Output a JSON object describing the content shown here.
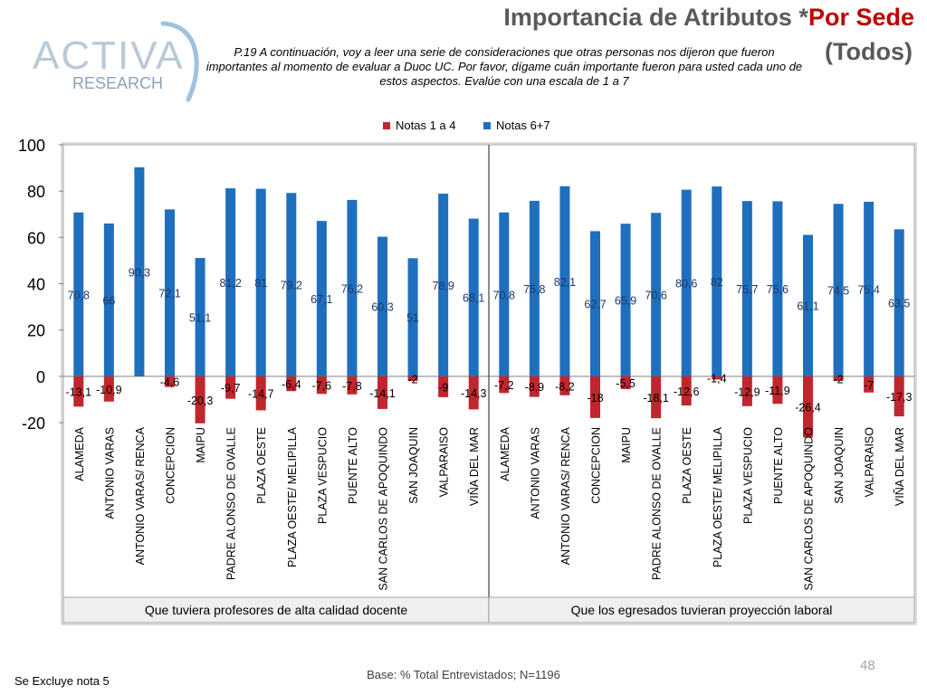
{
  "header": {
    "title_main": "Importancia de Atributos *",
    "title_accent": "Por Sede",
    "title_line2": "(Todos)",
    "question": "P.19 A continuación, voy a leer una serie de consideraciones que otras personas nos dijeron que fueron importantes al momento de evaluar a Duoc UC. Por favor, dígame cuán importante fueron para usted cada uno de estos aspectos. Evalúe con una escala de 1 a 7"
  },
  "logo": {
    "text_main": "ACTIVA",
    "text_sub": "RESEARCH"
  },
  "footer": {
    "base": "Base: % Total Entrevistados; N=1196",
    "note": "Se Excluye nota 5",
    "page": "48"
  },
  "colors": {
    "neg": "#c0262d",
    "pos": "#1f6fbf",
    "title_accent": "#c00000",
    "gray": "#595959"
  },
  "chart_data": {
    "type": "bar",
    "ylim": [
      -20,
      100
    ],
    "yticks": [
      -20,
      0,
      20,
      40,
      60,
      80,
      100
    ],
    "legend": [
      "Notas 1 a 4",
      "Notas 6+7"
    ],
    "legend_position": "top",
    "groups": [
      {
        "label": "Que tuviera profesores de alta calidad docente",
        "categories": [
          "ALAMEDA",
          "ANTONIO VARAS",
          "ANTONIO VARAS/ RENCA",
          "CONCEPCION",
          "MAIPU",
          "PADRE ALONSO DE OVALLE",
          "PLAZA OESTE",
          "PLAZA OESTE/ MELIPILLA",
          "PLAZA VESPUCIO",
          "PUENTE ALTO",
          "SAN CARLOS DE APOQUINDO",
          "SAN JOAQUIN",
          "VALPARAISO",
          "VIÑA DEL MAR"
        ],
        "pos": [
          70.8,
          66,
          90.3,
          72.1,
          51.1,
          81.2,
          81,
          79.2,
          67.1,
          76.2,
          60.3,
          51,
          78.9,
          68.1
        ],
        "pos_labels": [
          "70,8",
          "66",
          "90,3",
          "72,1",
          "51,1",
          "81,2",
          "81",
          "79,2",
          "67,1",
          "76,2",
          "60,3",
          "51",
          "78,9",
          "68,1"
        ],
        "neg": [
          -13.1,
          -10.9,
          null,
          -4.6,
          -20.3,
          -9.7,
          -14.7,
          -6.4,
          -7.6,
          -7.8,
          -14.1,
          -2,
          -9,
          -14.3
        ],
        "neg_labels": [
          "-13,1",
          "-10,9",
          "",
          "-4,6",
          "-20,3",
          "-9,7",
          "-14,7",
          "-6,4",
          "-7,6",
          "-7,8",
          "-14,1",
          "-2",
          "-9",
          "-14,3"
        ]
      },
      {
        "label": "Que los egresados tuvieran proyección laboral",
        "categories": [
          "ALAMEDA",
          "ANTONIO VARAS",
          "ANTONIO VARAS/ RENCA",
          "CONCEPCION",
          "MAIPU",
          "PADRE ALONSO DE OVALLE",
          "PLAZA OESTE",
          "PLAZA OESTE/ MELIPILLA",
          "PLAZA VESPUCIO",
          "PUENTE ALTO",
          "SAN CARLOS DE APOQUINDO",
          "SAN JOAQUIN",
          "VALPARAISO",
          "VIÑA DEL MAR"
        ],
        "pos": [
          70.8,
          75.8,
          82.1,
          62.7,
          65.9,
          70.6,
          80.6,
          82,
          75.7,
          75.6,
          61.1,
          74.5,
          75.4,
          63.5
        ],
        "pos_labels": [
          "70,8",
          "75,8",
          "82,1",
          "62,7",
          "65,9",
          "70,6",
          "80,6",
          "82",
          "75,7",
          "75,6",
          "61,1",
          "74,5",
          "75,4",
          "63,5"
        ],
        "neg": [
          -7.2,
          -8.9,
          -8.2,
          -18,
          -5.5,
          -18.1,
          -12.6,
          -1.4,
          -12.9,
          -11.9,
          -26.4,
          -2,
          -7,
          -17.3
        ],
        "neg_labels": [
          "-7,2",
          "-8,9",
          "-8,2",
          "-18",
          "-5,5",
          "-18,1",
          "-12,6",
          "-1,4",
          "-12,9",
          "-11,9",
          "-26,4",
          "-2",
          "-7",
          "-17,3"
        ]
      }
    ]
  }
}
